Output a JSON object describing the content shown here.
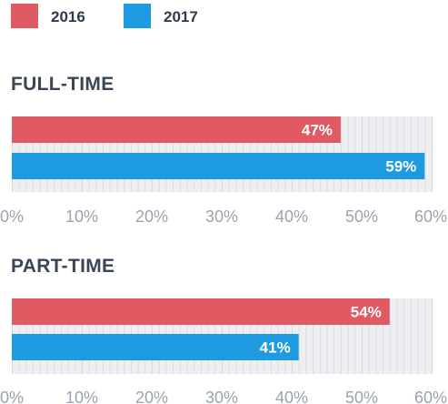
{
  "chart_data": [
    {
      "type": "bar",
      "orientation": "horizontal",
      "title": "FULL-TIME",
      "categories": [
        "FULL-TIME"
      ],
      "series": [
        {
          "name": "2016",
          "values": [
            47
          ],
          "labels": [
            "47%"
          ]
        },
        {
          "name": "2017",
          "values": [
            59
          ],
          "labels": [
            "59%"
          ]
        }
      ],
      "xlim": [
        0,
        60
      ],
      "xticks": [
        "0%",
        "10%",
        "20%",
        "30%",
        "40%",
        "50%",
        "60%"
      ],
      "grid": true,
      "legend": "top-left"
    },
    {
      "type": "bar",
      "orientation": "horizontal",
      "title": "PART-TIME",
      "categories": [
        "PART-TIME"
      ],
      "series": [
        {
          "name": "2016",
          "values": [
            54
          ],
          "labels": [
            "54%"
          ]
        },
        {
          "name": "2017",
          "values": [
            41
          ],
          "labels": [
            "41%"
          ]
        }
      ],
      "xlim": [
        0,
        60
      ],
      "xticks": [
        "0%",
        "10%",
        "20%",
        "30%",
        "40%",
        "50%",
        "60%"
      ],
      "grid": true,
      "legend": "top-left"
    }
  ],
  "legend": [
    {
      "label": "2016",
      "color": "#e05a63"
    },
    {
      "label": "2017",
      "color": "#1e9be0"
    }
  ],
  "colors": {
    "series_2016": "#e05a63",
    "series_2017": "#1e9be0",
    "track": "#eeeff2",
    "grid": "#d6d9de"
  }
}
